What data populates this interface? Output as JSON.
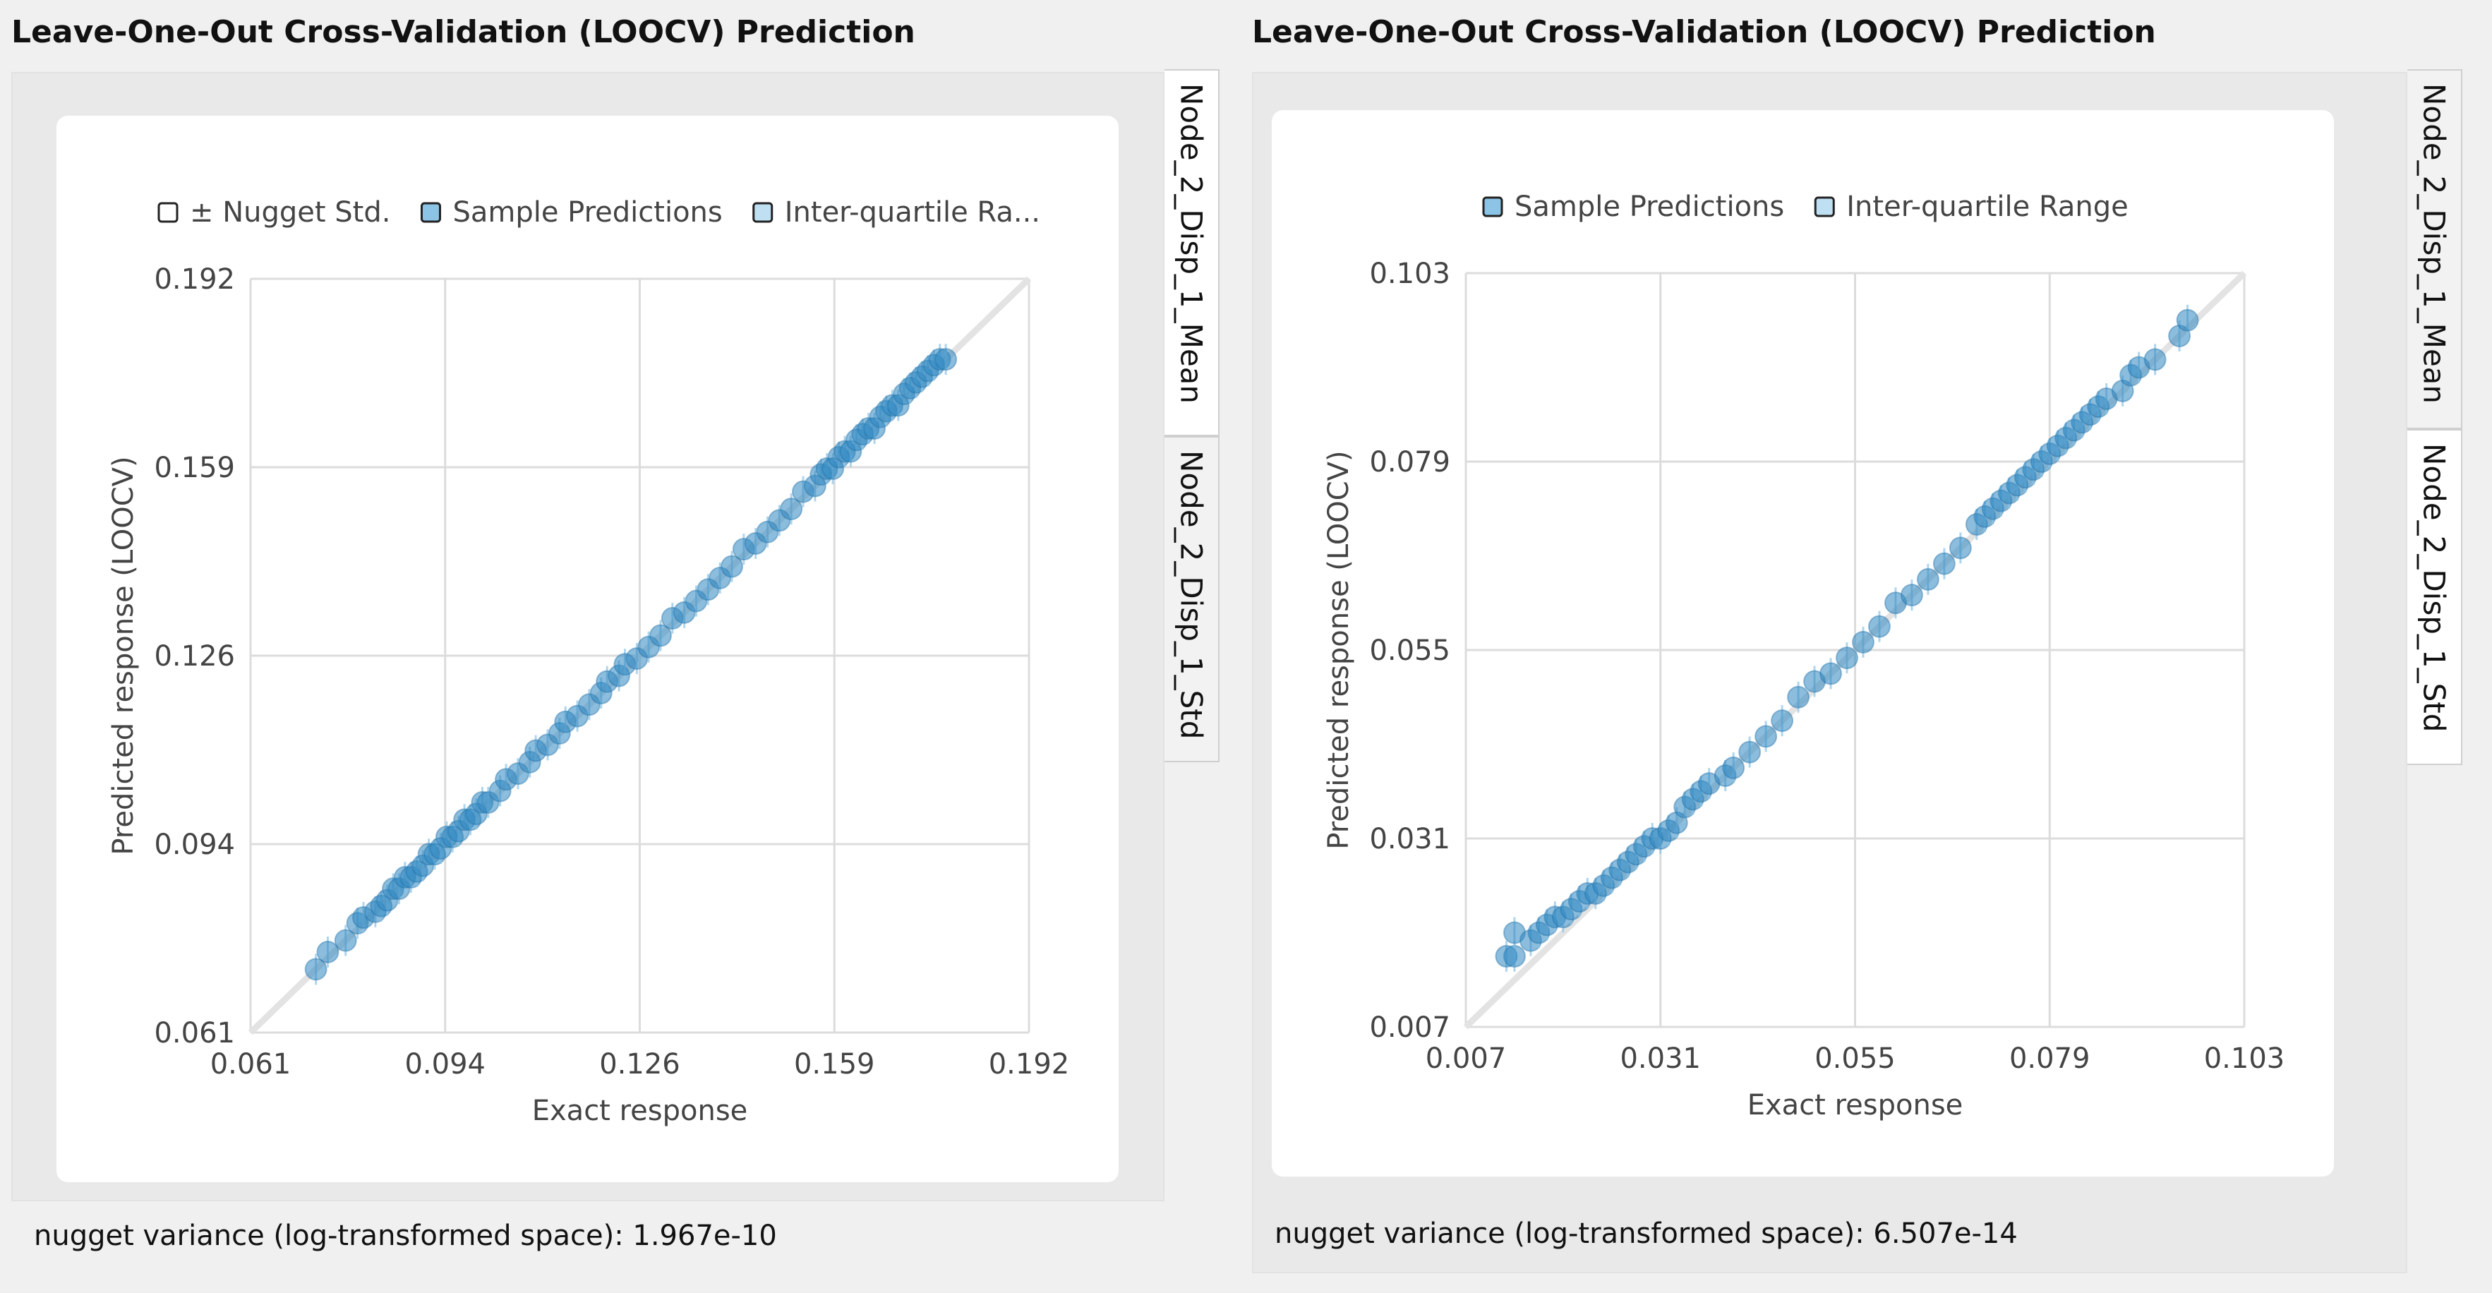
{
  "panels": [
    {
      "title": "Leave-One-Out Cross-Validation (LOOCV) Prediction",
      "tabs": [
        "Node_2_Disp_1_Mean",
        "Node_2_Disp_1_Std"
      ],
      "active_tab": 0,
      "footer": "nugget variance (log-transformed space): 1.967e-10"
    },
    {
      "title": "Leave-One-Out Cross-Validation (LOOCV) Prediction",
      "tabs": [
        "Node_2_Disp_1_Mean",
        "Node_2_Disp_1_Std"
      ],
      "active_tab": 1,
      "footer": "nugget variance (log-transformed space): 6.507e-14"
    }
  ],
  "colors": {
    "marker": "#2e86c1",
    "marker_edge": "#1f6fa5",
    "legend_blue": "#8cc4e6",
    "grid": "#dcdcdc",
    "diagonal": "#e3e3e3"
  },
  "chart_data": [
    {
      "type": "scatter",
      "legend": [
        "± Nugget Std.",
        "Sample Predictions",
        "Inter-quartile Ra..."
      ],
      "legend_swatches": [
        "white",
        "blue",
        "light-blue"
      ],
      "legend_placement": "top",
      "xlabel": "Exact response",
      "ylabel": "Predicted response (LOOCV)",
      "xlim": [
        0.061,
        0.192
      ],
      "ylim": [
        0.061,
        0.192
      ],
      "xticks": [
        "0.061",
        "0.094",
        "0.126",
        "0.159",
        "0.192"
      ],
      "yticks": [
        "0.061",
        "0.094",
        "0.126",
        "0.159",
        "0.192"
      ],
      "grid": true,
      "diagonal": true,
      "series": [
        {
          "name": "Sample Predictions",
          "points": [
            [
              0.072,
              0.072
            ],
            [
              0.074,
              0.075
            ],
            [
              0.077,
              0.077
            ],
            [
              0.079,
              0.08
            ],
            [
              0.08,
              0.081
            ],
            [
              0.082,
              0.082
            ],
            [
              0.083,
              0.083
            ],
            [
              0.084,
              0.084
            ],
            [
              0.085,
              0.086
            ],
            [
              0.086,
              0.086
            ],
            [
              0.087,
              0.088
            ],
            [
              0.088,
              0.088
            ],
            [
              0.089,
              0.089
            ],
            [
              0.09,
              0.09
            ],
            [
              0.091,
              0.092
            ],
            [
              0.092,
              0.092
            ],
            [
              0.093,
              0.093
            ],
            [
              0.094,
              0.095
            ],
            [
              0.095,
              0.095
            ],
            [
              0.096,
              0.096
            ],
            [
              0.097,
              0.098
            ],
            [
              0.098,
              0.098
            ],
            [
              0.099,
              0.099
            ],
            [
              0.1,
              0.101
            ],
            [
              0.101,
              0.101
            ],
            [
              0.103,
              0.103
            ],
            [
              0.104,
              0.105
            ],
            [
              0.106,
              0.106
            ],
            [
              0.108,
              0.108
            ],
            [
              0.109,
              0.11
            ],
            [
              0.111,
              0.111
            ],
            [
              0.113,
              0.113
            ],
            [
              0.114,
              0.115
            ],
            [
              0.116,
              0.116
            ],
            [
              0.118,
              0.118
            ],
            [
              0.12,
              0.12
            ],
            [
              0.121,
              0.122
            ],
            [
              0.123,
              0.123
            ],
            [
              0.124,
              0.125
            ],
            [
              0.126,
              0.126
            ],
            [
              0.128,
              0.128
            ],
            [
              0.13,
              0.13
            ],
            [
              0.132,
              0.133
            ],
            [
              0.134,
              0.134
            ],
            [
              0.136,
              0.136
            ],
            [
              0.138,
              0.138
            ],
            [
              0.14,
              0.14
            ],
            [
              0.142,
              0.142
            ],
            [
              0.144,
              0.145
            ],
            [
              0.146,
              0.146
            ],
            [
              0.148,
              0.148
            ],
            [
              0.15,
              0.15
            ],
            [
              0.152,
              0.152
            ],
            [
              0.154,
              0.155
            ],
            [
              0.156,
              0.156
            ],
            [
              0.157,
              0.158
            ],
            [
              0.158,
              0.159
            ],
            [
              0.159,
              0.159
            ],
            [
              0.16,
              0.161
            ],
            [
              0.161,
              0.162
            ],
            [
              0.162,
              0.162
            ],
            [
              0.163,
              0.164
            ],
            [
              0.164,
              0.165
            ],
            [
              0.165,
              0.166
            ],
            [
              0.166,
              0.166
            ],
            [
              0.167,
              0.168
            ],
            [
              0.168,
              0.169
            ],
            [
              0.169,
              0.17
            ],
            [
              0.17,
              0.17
            ],
            [
              0.171,
              0.172
            ],
            [
              0.172,
              0.173
            ],
            [
              0.173,
              0.174
            ],
            [
              0.174,
              0.175
            ],
            [
              0.175,
              0.176
            ],
            [
              0.176,
              0.177
            ],
            [
              0.177,
              0.178
            ],
            [
              0.178,
              0.178
            ]
          ]
        }
      ]
    },
    {
      "type": "scatter",
      "legend": [
        "Sample Predictions",
        "Inter-quartile Range"
      ],
      "legend_swatches": [
        "blue",
        "light-blue"
      ],
      "legend_placement": "top",
      "xlabel": "Exact response",
      "ylabel": "Predicted response (LOOCV)",
      "xlim": [
        0.007,
        0.103
      ],
      "ylim": [
        0.007,
        0.103
      ],
      "xticks": [
        "0.007",
        "0.031",
        "0.055",
        "0.079",
        "0.103"
      ],
      "yticks": [
        "0.007",
        "0.031",
        "0.055",
        "0.079",
        "0.103"
      ],
      "grid": true,
      "diagonal": true,
      "series": [
        {
          "name": "Sample Predictions",
          "points": [
            [
              0.012,
              0.016
            ],
            [
              0.013,
              0.016
            ],
            [
              0.013,
              0.019
            ],
            [
              0.015,
              0.018
            ],
            [
              0.016,
              0.019
            ],
            [
              0.017,
              0.02
            ],
            [
              0.018,
              0.021
            ],
            [
              0.019,
              0.021
            ],
            [
              0.02,
              0.022
            ],
            [
              0.021,
              0.023
            ],
            [
              0.022,
              0.024
            ],
            [
              0.023,
              0.024
            ],
            [
              0.024,
              0.025
            ],
            [
              0.025,
              0.026
            ],
            [
              0.026,
              0.027
            ],
            [
              0.027,
              0.028
            ],
            [
              0.028,
              0.029
            ],
            [
              0.029,
              0.03
            ],
            [
              0.03,
              0.031
            ],
            [
              0.031,
              0.031
            ],
            [
              0.032,
              0.032
            ],
            [
              0.033,
              0.033
            ],
            [
              0.034,
              0.035
            ],
            [
              0.035,
              0.036
            ],
            [
              0.036,
              0.037
            ],
            [
              0.037,
              0.038
            ],
            [
              0.039,
              0.039
            ],
            [
              0.04,
              0.04
            ],
            [
              0.042,
              0.042
            ],
            [
              0.044,
              0.044
            ],
            [
              0.046,
              0.046
            ],
            [
              0.048,
              0.049
            ],
            [
              0.05,
              0.051
            ],
            [
              0.052,
              0.052
            ],
            [
              0.054,
              0.054
            ],
            [
              0.056,
              0.056
            ],
            [
              0.058,
              0.058
            ],
            [
              0.06,
              0.061
            ],
            [
              0.062,
              0.062
            ],
            [
              0.064,
              0.064
            ],
            [
              0.066,
              0.066
            ],
            [
              0.068,
              0.068
            ],
            [
              0.07,
              0.071
            ],
            [
              0.071,
              0.072
            ],
            [
              0.072,
              0.073
            ],
            [
              0.073,
              0.074
            ],
            [
              0.074,
              0.075
            ],
            [
              0.075,
              0.076
            ],
            [
              0.076,
              0.077
            ],
            [
              0.077,
              0.078
            ],
            [
              0.078,
              0.079
            ],
            [
              0.079,
              0.08
            ],
            [
              0.08,
              0.081
            ],
            [
              0.081,
              0.082
            ],
            [
              0.082,
              0.083
            ],
            [
              0.083,
              0.084
            ],
            [
              0.084,
              0.085
            ],
            [
              0.085,
              0.086
            ],
            [
              0.086,
              0.087
            ],
            [
              0.088,
              0.088
            ],
            [
              0.089,
              0.09
            ],
            [
              0.09,
              0.091
            ],
            [
              0.092,
              0.092
            ],
            [
              0.095,
              0.095
            ],
            [
              0.096,
              0.097
            ]
          ]
        }
      ]
    }
  ]
}
